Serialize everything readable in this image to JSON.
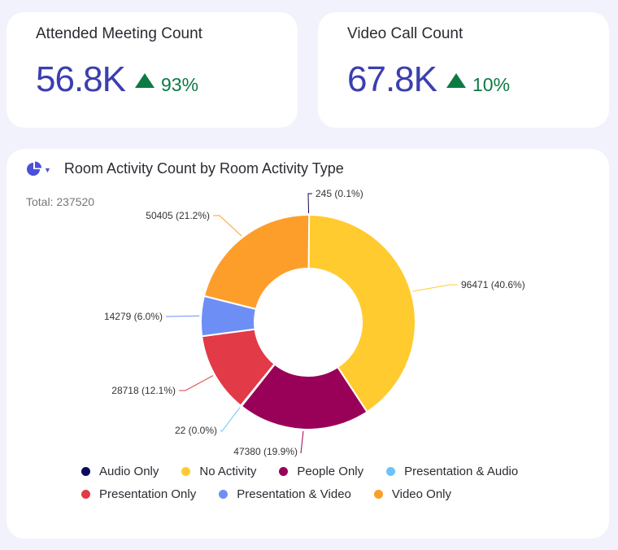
{
  "kpis": [
    {
      "title": "Attended Meeting Count",
      "value": "56.8K",
      "delta": "93%"
    },
    {
      "title": "Video Call Count",
      "value": "67.8K",
      "delta": "10%"
    }
  ],
  "colors": {
    "value": "#3b3fb0",
    "positive": "#0d7a43",
    "accent": "#4b50d8"
  },
  "chart_header": {
    "icon": "pie-chart-icon"
  },
  "chart_data": {
    "type": "pie",
    "title": "Room Activity Count by Room Activity Type",
    "total_label": "Total: 237520",
    "legend_position": "bottom",
    "slices": [
      {
        "label": "Audio Only",
        "value": 245,
        "text": "245 (0.1%)",
        "color": "#0b0b5c"
      },
      {
        "label": "No Activity",
        "value": 96471,
        "text": "96471 (40.6%)",
        "color": "#ffcb2f"
      },
      {
        "label": "People Only",
        "value": 47380,
        "text": "47380 (19.9%)",
        "color": "#990158"
      },
      {
        "label": "Presentation & Audio",
        "value": 22,
        "text": "22 (0.0%)",
        "color": "#6cc3fb"
      },
      {
        "label": "Presentation Only",
        "value": 28718,
        "text": "28718 (12.1%)",
        "color": "#e23a46"
      },
      {
        "label": "Presentation & Video",
        "value": 14279,
        "text": "14279 (6.0%)",
        "color": "#6d8ff5"
      },
      {
        "label": "Video Only",
        "value": 50405,
        "text": "50405 (21.2%)",
        "color": "#fd9e2b"
      }
    ]
  }
}
